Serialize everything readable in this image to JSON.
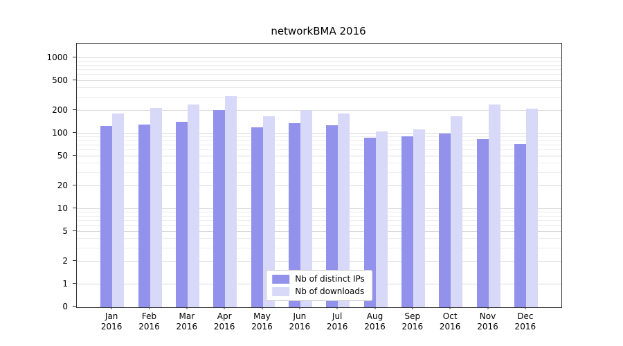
{
  "chart_data": {
    "type": "bar",
    "title": "networkBMA 2016",
    "categories": [
      "Jan",
      "Feb",
      "Mar",
      "Apr",
      "May",
      "Jun",
      "Jul",
      "Aug",
      "Sep",
      "Oct",
      "Nov",
      "Dec"
    ],
    "year_label": "2016",
    "yscale": "symlog",
    "yticks": [
      0,
      1,
      2,
      5,
      10,
      20,
      50,
      100,
      200,
      500,
      1000
    ],
    "ylim": [
      0,
      1500
    ],
    "grid": true,
    "legend_position": "lower center",
    "series": [
      {
        "name": "Nb of distinct IPs",
        "color": "#9292ec",
        "values": [
          125,
          132,
          143,
          207,
          122,
          138,
          130,
          88,
          91,
          100,
          84,
          73
        ]
      },
      {
        "name": "Nb of downloads",
        "color": "#d8d8f8",
        "values": [
          185,
          220,
          243,
          310,
          168,
          203,
          183,
          107,
          113,
          170,
          243,
          215
        ]
      }
    ]
  }
}
